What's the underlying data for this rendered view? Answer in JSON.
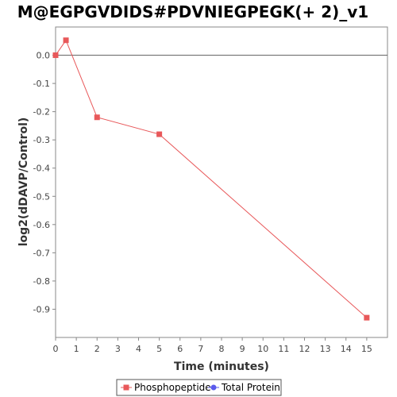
{
  "chart_data": {
    "type": "line",
    "title": "M@EGPGVDIDS#PDVNIEGPEGK(+ 2)_v1",
    "xlabel": "Time (minutes)",
    "ylabel": "log2(dDAVP/Control)",
    "xlim": [
      0,
      16
    ],
    "ylim": [
      -1.0,
      0.1
    ],
    "x_ticks": [
      0,
      1,
      2,
      3,
      4,
      5,
      6,
      7,
      8,
      9,
      10,
      11,
      12,
      13,
      14,
      15
    ],
    "y_ticks": [
      0.0,
      -0.1,
      -0.2,
      -0.3,
      -0.4,
      -0.5,
      -0.6,
      -0.7,
      -0.8,
      -0.9
    ],
    "y_tick_labels": [
      "0.0",
      "-0.1",
      "-0.2",
      "-0.3",
      "-0.4",
      "-0.5",
      "-0.6",
      "-0.7",
      "-0.8",
      "-0.9"
    ],
    "zero_line": true,
    "grid": false,
    "legend_position": "bottom",
    "series": [
      {
        "name": "Phosphopeptide",
        "color": "#e8585a",
        "marker": "square",
        "x": [
          0,
          0.5,
          2,
          5,
          15
        ],
        "y": [
          0.0,
          0.053,
          -0.22,
          -0.28,
          -0.93
        ]
      },
      {
        "name": "Total Protein",
        "color": "#5a5aec",
        "marker": "circle",
        "x": [],
        "y": []
      }
    ]
  }
}
